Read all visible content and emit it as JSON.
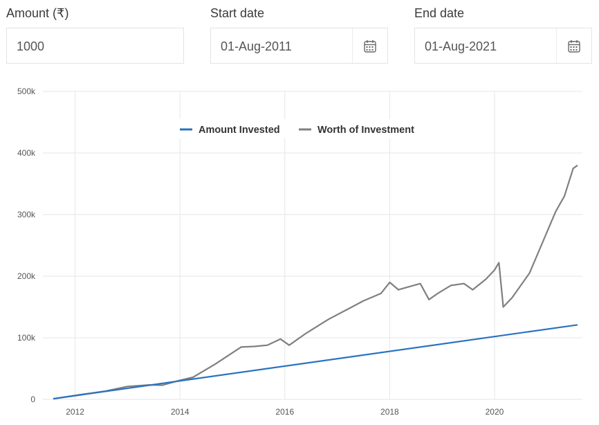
{
  "form": {
    "amount": {
      "label": "Amount (₹)",
      "value": "1000"
    },
    "start_date": {
      "label": "Start date",
      "value": "01-Aug-2011",
      "icon": "calendar-icon"
    },
    "end_date": {
      "label": "End date",
      "value": "01-Aug-2021",
      "icon": "calendar-icon"
    }
  },
  "colors": {
    "invested": "#2a72c0",
    "worth": "#7f7f7f",
    "grid": "#e6e6e6"
  },
  "chart_data": {
    "type": "line",
    "grid": true,
    "legend_position": "top",
    "x_ticks": [
      "2012",
      "2014",
      "2016",
      "2018",
      "2020"
    ],
    "y_ticks": [
      "0",
      "100k",
      "200k",
      "300k",
      "400k",
      "500k"
    ],
    "xlim": [
      "2011-08",
      "2021-08"
    ],
    "ylim": [
      0,
      500000
    ],
    "series": [
      {
        "name": "Amount Invested",
        "points": [
          [
            "2011-08",
            1000
          ],
          [
            "2021-08",
            121000
          ]
        ]
      },
      {
        "name": "Worth of Investment",
        "points": [
          [
            "2011-08",
            1000
          ],
          [
            "2012-02",
            7500
          ],
          [
            "2012-08",
            13500
          ],
          [
            "2013-01",
            21000
          ],
          [
            "2013-06",
            23500
          ],
          [
            "2013-09",
            23000
          ],
          [
            "2014-01",
            31000
          ],
          [
            "2014-04",
            36000
          ],
          [
            "2014-09",
            57000
          ],
          [
            "2015-03",
            85000
          ],
          [
            "2015-06",
            86000
          ],
          [
            "2015-09",
            88000
          ],
          [
            "2015-12",
            98000
          ],
          [
            "2016-02",
            88000
          ],
          [
            "2016-06",
            108000
          ],
          [
            "2016-11",
            130000
          ],
          [
            "2017-03",
            145000
          ],
          [
            "2017-07",
            160000
          ],
          [
            "2017-11",
            172000
          ],
          [
            "2018-01",
            190000
          ],
          [
            "2018-03",
            178000
          ],
          [
            "2018-08",
            188000
          ],
          [
            "2018-10",
            162000
          ],
          [
            "2018-12",
            172000
          ],
          [
            "2019-03",
            185000
          ],
          [
            "2019-06",
            188000
          ],
          [
            "2019-08",
            178000
          ],
          [
            "2019-11",
            195000
          ],
          [
            "2020-01",
            210000
          ],
          [
            "2020-02",
            222000
          ],
          [
            "2020-03",
            150000
          ],
          [
            "2020-05",
            165000
          ],
          [
            "2020-09",
            205000
          ],
          [
            "2020-12",
            255000
          ],
          [
            "2021-03",
            305000
          ],
          [
            "2021-05",
            330000
          ],
          [
            "2021-07",
            375000
          ],
          [
            "2021-08",
            380000
          ]
        ]
      }
    ]
  }
}
